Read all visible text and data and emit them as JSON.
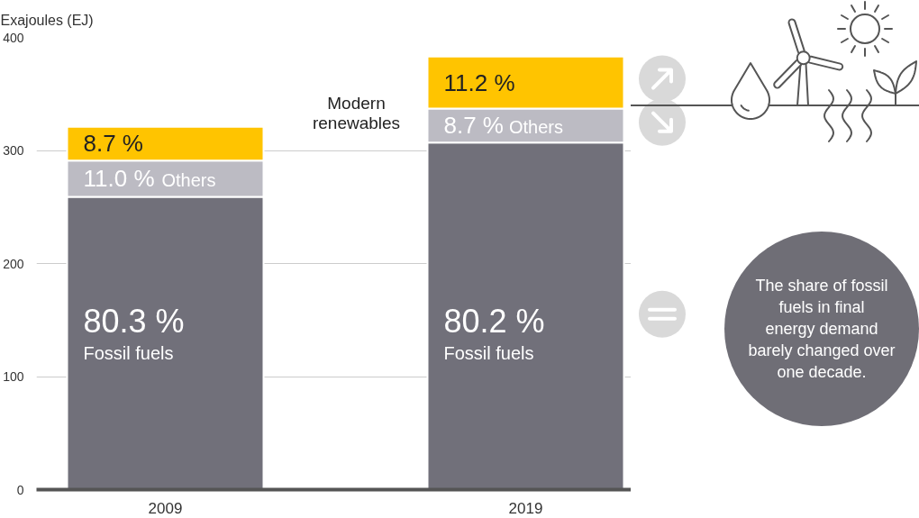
{
  "chart_data": {
    "type": "bar",
    "stacked": true,
    "ylabel": "Exajoules (EJ)",
    "categories": [
      "2009",
      "2019"
    ],
    "series": [
      {
        "name": "Fossil fuels",
        "color": "#71707a",
        "values": [
          259,
          307
        ]
      },
      {
        "name": "Others",
        "color": "#bcbbc3",
        "values": [
          32,
          30
        ]
      },
      {
        "name": "Modern renewables",
        "color": "#ffc400",
        "values": [
          30,
          46
        ]
      }
    ],
    "ylim": [
      0,
      400
    ],
    "yticks": [
      0,
      100,
      200,
      300,
      400
    ],
    "grid": "y",
    "annotations": [
      "80.3 %",
      "80.2 %",
      {
        "text": "11.0 %",
        "x": "2009",
        "y": 291
      },
      {
        "text": "8.7 %",
        "x": "2009",
        "y": 321
      },
      {
        "text": "8.7 %",
        "x": "2019",
        "y": 337
      },
      {
        "text": "11.2 %",
        "x": "2019",
        "y": 383
      },
      "The share of fossil fuels in final energy demand barely changed over one decade."
    ]
  }
}
